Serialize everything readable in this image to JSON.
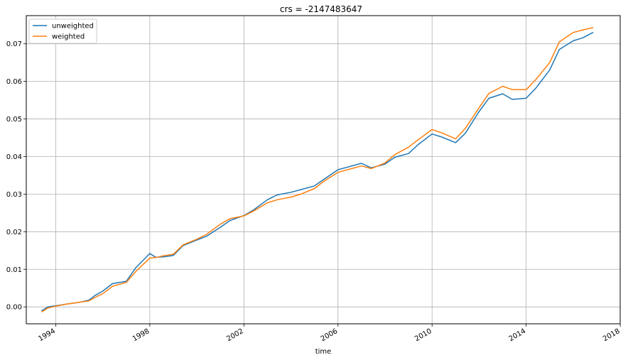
{
  "chart_data": {
    "type": "line",
    "title": "crs = -2147483647",
    "xlabel": "time",
    "ylabel": "",
    "x_ticks": [
      "1994",
      "1998",
      "2002",
      "2006",
      "2010",
      "2014",
      "2018"
    ],
    "y_ticks": [
      "0.00",
      "0.01",
      "0.02",
      "0.03",
      "0.04",
      "0.05",
      "0.06",
      "0.07"
    ],
    "xlim": [
      "1992-10-01",
      "2017-12-31"
    ],
    "ylim": [
      -0.0045,
      0.0775
    ],
    "grid": true,
    "legend_position": "top-left",
    "series": [
      {
        "name": "unweighted",
        "color": "#1f77b4",
        "points": [
          [
            "1993-06-01",
            -0.001
          ],
          [
            "1993-09-01",
            0.0
          ],
          [
            "1994-01-01",
            0.0003
          ],
          [
            "1994-06-01",
            0.0007
          ],
          [
            "1995-01-01",
            0.0012
          ],
          [
            "1995-06-01",
            0.0018
          ],
          [
            "1995-09-01",
            0.003
          ],
          [
            "1996-01-01",
            0.0042
          ],
          [
            "1996-06-01",
            0.0062
          ],
          [
            "1997-01-01",
            0.0068
          ],
          [
            "1997-06-01",
            0.0105
          ],
          [
            "1998-01-01",
            0.0142
          ],
          [
            "1998-04-01",
            0.0132
          ],
          [
            "1998-08-01",
            0.0133
          ],
          [
            "1999-01-01",
            0.0137
          ],
          [
            "1999-06-01",
            0.0163
          ],
          [
            "2000-01-01",
            0.0178
          ],
          [
            "2000-06-01",
            0.0188
          ],
          [
            "2001-01-01",
            0.0212
          ],
          [
            "2001-06-01",
            0.023
          ],
          [
            "2002-01-01",
            0.0243
          ],
          [
            "2002-06-01",
            0.0258
          ],
          [
            "2003-01-01",
            0.0285
          ],
          [
            "2003-06-01",
            0.0298
          ],
          [
            "2004-01-01",
            0.0305
          ],
          [
            "2004-06-01",
            0.0312
          ],
          [
            "2005-01-01",
            0.0322
          ],
          [
            "2005-06-01",
            0.034
          ],
          [
            "2006-01-01",
            0.0365
          ],
          [
            "2006-06-01",
            0.0372
          ],
          [
            "2007-01-01",
            0.0382
          ],
          [
            "2007-06-01",
            0.037
          ],
          [
            "2008-01-01",
            0.038
          ],
          [
            "2008-06-01",
            0.0398
          ],
          [
            "2009-01-01",
            0.0408
          ],
          [
            "2009-06-01",
            0.0432
          ],
          [
            "2010-01-01",
            0.046
          ],
          [
            "2010-06-01",
            0.0452
          ],
          [
            "2011-01-01",
            0.0437
          ],
          [
            "2011-06-01",
            0.0462
          ],
          [
            "2012-01-01",
            0.052
          ],
          [
            "2012-06-01",
            0.0555
          ],
          [
            "2013-01-01",
            0.0567
          ],
          [
            "2013-06-01",
            0.0552
          ],
          [
            "2014-01-01",
            0.0555
          ],
          [
            "2014-06-01",
            0.0582
          ],
          [
            "2015-01-01",
            0.063
          ],
          [
            "2015-06-01",
            0.0685
          ],
          [
            "2016-01-01",
            0.0708
          ],
          [
            "2016-06-01",
            0.0716
          ],
          [
            "2016-11-01",
            0.073
          ]
        ]
      },
      {
        "name": "weighted",
        "color": "#ff7f0e",
        "points": [
          [
            "1993-06-01",
            -0.0013
          ],
          [
            "1993-09-01",
            -0.0003
          ],
          [
            "1994-01-01",
            0.0002
          ],
          [
            "1994-06-01",
            0.0007
          ],
          [
            "1995-01-01",
            0.0012
          ],
          [
            "1995-06-01",
            0.0016
          ],
          [
            "1995-09-01",
            0.0025
          ],
          [
            "1996-01-01",
            0.0035
          ],
          [
            "1996-06-01",
            0.0055
          ],
          [
            "1997-01-01",
            0.0065
          ],
          [
            "1997-06-01",
            0.0095
          ],
          [
            "1998-01-01",
            0.013
          ],
          [
            "1998-04-01",
            0.0131
          ],
          [
            "1998-08-01",
            0.0136
          ],
          [
            "1999-01-01",
            0.014
          ],
          [
            "1999-06-01",
            0.0165
          ],
          [
            "2000-01-01",
            0.018
          ],
          [
            "2000-06-01",
            0.0193
          ],
          [
            "2001-01-01",
            0.022
          ],
          [
            "2001-06-01",
            0.0235
          ],
          [
            "2002-01-01",
            0.0242
          ],
          [
            "2002-06-01",
            0.0255
          ],
          [
            "2003-01-01",
            0.0277
          ],
          [
            "2003-06-01",
            0.0285
          ],
          [
            "2004-01-01",
            0.0292
          ],
          [
            "2004-06-01",
            0.03
          ],
          [
            "2005-01-01",
            0.0315
          ],
          [
            "2005-06-01",
            0.0335
          ],
          [
            "2006-01-01",
            0.0358
          ],
          [
            "2006-06-01",
            0.0365
          ],
          [
            "2007-01-01",
            0.0375
          ],
          [
            "2007-06-01",
            0.0368
          ],
          [
            "2008-01-01",
            0.0383
          ],
          [
            "2008-06-01",
            0.0405
          ],
          [
            "2009-01-01",
            0.0425
          ],
          [
            "2009-06-01",
            0.0445
          ],
          [
            "2010-01-01",
            0.0472
          ],
          [
            "2010-06-01",
            0.0463
          ],
          [
            "2011-01-01",
            0.0447
          ],
          [
            "2011-06-01",
            0.0475
          ],
          [
            "2012-01-01",
            0.053
          ],
          [
            "2012-06-01",
            0.0568
          ],
          [
            "2013-01-01",
            0.0587
          ],
          [
            "2013-06-01",
            0.0578
          ],
          [
            "2014-01-01",
            0.0578
          ],
          [
            "2014-06-01",
            0.0605
          ],
          [
            "2015-01-01",
            0.065
          ],
          [
            "2015-06-01",
            0.0705
          ],
          [
            "2016-01-01",
            0.073
          ],
          [
            "2016-06-01",
            0.0737
          ],
          [
            "2016-11-01",
            0.0743
          ]
        ]
      }
    ]
  }
}
